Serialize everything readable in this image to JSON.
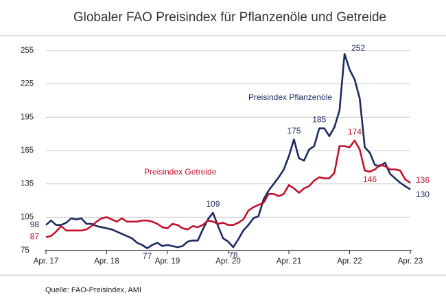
{
  "chart_data": {
    "type": "line",
    "title": "Globaler FAO Preisindex für Pflanzenöle und Getreide",
    "source": "Quelle: FAO-Preisindex, AMI",
    "categories": [
      "Apr. 17",
      null,
      null,
      null,
      null,
      null,
      null,
      null,
      null,
      null,
      null,
      null,
      "Apr. 18",
      null,
      null,
      null,
      null,
      null,
      null,
      null,
      null,
      null,
      null,
      null,
      "Apr. 19",
      null,
      null,
      null,
      null,
      null,
      null,
      null,
      null,
      null,
      null,
      null,
      "Apr. 20",
      null,
      null,
      null,
      null,
      null,
      null,
      null,
      null,
      null,
      null,
      null,
      "Apr. 21",
      null,
      null,
      null,
      null,
      null,
      null,
      null,
      null,
      null,
      null,
      null,
      "Apr. 22",
      null,
      null,
      null,
      null,
      null,
      null,
      null,
      null,
      null,
      null,
      null,
      "Apr. 23"
    ],
    "ylim": [
      75,
      255
    ],
    "yticks": [
      75,
      105,
      135,
      165,
      195,
      225,
      255
    ],
    "grid": true,
    "series": [
      {
        "name": "Preisindex Pflanzenöle",
        "color": "#1b2a5e",
        "values": [
          98,
          102,
          98,
          98,
          100,
          104,
          103,
          104,
          99,
          99,
          97,
          96,
          95,
          94,
          92,
          90,
          88,
          86,
          82,
          80,
          77,
          80,
          82,
          79,
          80,
          79,
          78,
          79,
          83,
          84,
          84,
          94,
          103,
          109,
          97,
          86,
          83,
          78,
          85,
          93,
          98,
          104,
          106,
          121,
          129,
          135,
          141,
          148,
          160,
          175,
          158,
          156,
          166,
          169,
          185,
          185,
          178,
          186,
          201,
          252,
          238,
          229,
          212,
          168,
          163,
          152,
          151,
          154,
          144,
          140,
          136,
          133,
          130
        ],
        "value_labels": [
          "98",
          null,
          null,
          null,
          null,
          null,
          null,
          null,
          null,
          null,
          null,
          null,
          null,
          null,
          null,
          null,
          null,
          null,
          null,
          null,
          "77",
          null,
          null,
          null,
          null,
          null,
          null,
          null,
          null,
          null,
          null,
          null,
          null,
          "109",
          null,
          null,
          null,
          "78",
          null,
          null,
          null,
          null,
          null,
          null,
          null,
          null,
          null,
          null,
          null,
          "175",
          null,
          null,
          null,
          null,
          "185",
          null,
          null,
          null,
          null,
          "252",
          null,
          null,
          null,
          null,
          null,
          null,
          null,
          null,
          null,
          null,
          null,
          null,
          "130"
        ]
      },
      {
        "name": "Preisindex Getreide",
        "color": "#c0122b",
        "values": [
          87,
          88,
          92,
          97,
          93,
          93,
          93,
          93,
          94,
          97,
          101,
          104,
          105,
          103,
          101,
          104,
          101,
          101,
          101,
          102,
          102,
          101,
          99,
          96,
          95,
          99,
          98,
          95,
          94,
          97,
          96,
          98,
          102,
          101,
          99,
          100,
          98,
          98,
          100,
          103,
          111,
          114,
          116,
          118,
          126,
          126,
          124,
          126,
          134,
          131,
          127,
          131,
          133,
          138,
          141,
          140,
          140,
          145,
          169,
          169,
          168,
          174,
          166,
          147,
          146,
          148,
          152,
          151,
          148,
          148,
          147,
          139,
          136
        ],
        "value_labels": [
          "87",
          null,
          null,
          null,
          null,
          null,
          null,
          null,
          null,
          null,
          null,
          null,
          null,
          null,
          null,
          null,
          null,
          null,
          null,
          null,
          null,
          null,
          null,
          null,
          null,
          null,
          null,
          null,
          null,
          null,
          null,
          null,
          null,
          null,
          null,
          null,
          null,
          null,
          null,
          null,
          null,
          null,
          null,
          null,
          null,
          null,
          null,
          null,
          null,
          null,
          null,
          null,
          null,
          null,
          null,
          null,
          null,
          null,
          null,
          null,
          null,
          "174",
          null,
          null,
          "146",
          null,
          null,
          null,
          null,
          null,
          null,
          null,
          "136"
        ]
      }
    ]
  }
}
